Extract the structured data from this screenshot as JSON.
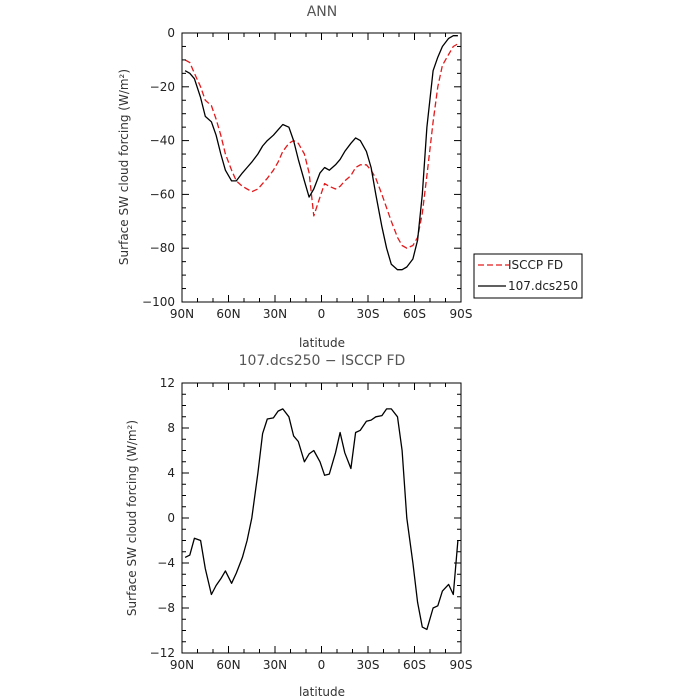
{
  "chart_data": [
    {
      "type": "line",
      "title": "ANN",
      "xlabel": "latitude",
      "ylabel": "Surface SW cloud forcing (W/m²)",
      "xlim": [
        90,
        -90
      ],
      "ylim": [
        -100,
        0
      ],
      "x_ticks": [
        {
          "value": 90,
          "label": "90N"
        },
        {
          "value": 60,
          "label": "60N"
        },
        {
          "value": 30,
          "label": "30N"
        },
        {
          "value": 0,
          "label": "0"
        },
        {
          "value": -30,
          "label": "30S"
        },
        {
          "value": -60,
          "label": "60S"
        },
        {
          "value": -90,
          "label": "90S"
        }
      ],
      "y_ticks": [
        {
          "value": 0,
          "label": "0"
        },
        {
          "value": -20,
          "label": "−20"
        },
        {
          "value": -40,
          "label": "−40"
        },
        {
          "value": -60,
          "label": "−60"
        },
        {
          "value": -80,
          "label": "−80"
        },
        {
          "value": -100,
          "label": "−100"
        }
      ],
      "legend": {
        "position": "right-bottom-outside"
      },
      "series": [
        {
          "name": "ISCCP FD",
          "color": "#e31a1c",
          "style": "dashed",
          "x": [
            88,
            85,
            82,
            78,
            75,
            71,
            68,
            65,
            62,
            58,
            55,
            51,
            48,
            45,
            41,
            38,
            35,
            31,
            28,
            25,
            21,
            18,
            15,
            11,
            8,
            5,
            1,
            -2,
            -5,
            -9,
            -12,
            -15,
            -19,
            -22,
            -25,
            -29,
            -32,
            -35,
            -39,
            -42,
            -45,
            -49,
            -52,
            -55,
            -59,
            -62,
            -65,
            -68,
            -72,
            -75,
            -78,
            -82,
            -85,
            -88
          ],
          "values": [
            -10,
            -11,
            -15,
            -20,
            -25,
            -27,
            -32,
            -38,
            -45,
            -51,
            -55,
            -57,
            -58,
            -59,
            -58,
            -56,
            -54,
            -51,
            -48,
            -44,
            -41,
            -40,
            -41,
            -45,
            -52,
            -68,
            -61,
            -56,
            -57,
            -58,
            -57,
            -55,
            -53,
            -50,
            -49,
            -49,
            -51,
            -54,
            -60,
            -65,
            -70,
            -76,
            -79,
            -80,
            -79,
            -76,
            -67,
            -53,
            -33,
            -20,
            -12,
            -8,
            -5,
            -4
          ]
        },
        {
          "name": "107.dcs250",
          "color": "#000000",
          "style": "solid",
          "x": [
            88,
            85,
            82,
            78,
            75,
            71,
            68,
            65,
            62,
            58,
            55,
            51,
            48,
            45,
            41,
            38,
            35,
            31,
            28,
            25,
            21,
            18,
            15,
            11,
            8,
            5,
            1,
            -2,
            -5,
            -9,
            -12,
            -15,
            -19,
            -22,
            -25,
            -29,
            -32,
            -35,
            -39,
            -42,
            -45,
            -49,
            -52,
            -55,
            -59,
            -62,
            -65,
            -68,
            -72,
            -75,
            -78,
            -82,
            -85,
            -88
          ],
          "values": [
            -14,
            -15,
            -17,
            -24,
            -31,
            -33,
            -38,
            -45,
            -51,
            -55,
            -55,
            -52,
            -50,
            -48,
            -45,
            -42,
            -40,
            -38,
            -36,
            -34,
            -35,
            -40,
            -47,
            -55,
            -61,
            -58,
            -52,
            -50,
            -51,
            -49,
            -47,
            -44,
            -41,
            -39,
            -40,
            -44,
            -50,
            -60,
            -72,
            -80,
            -86,
            -88,
            -88,
            -87,
            -84,
            -77,
            -60,
            -35,
            -14,
            -9,
            -5,
            -2,
            -1,
            -1
          ]
        }
      ]
    },
    {
      "type": "line",
      "title": "107.dcs250 − ISCCP FD",
      "xlabel": "latitude",
      "ylabel": "Surface SW cloud forcing (W/m²)",
      "xlim": [
        90,
        -90
      ],
      "ylim": [
        -12,
        12
      ],
      "x_ticks": [
        {
          "value": 90,
          "label": "90N"
        },
        {
          "value": 60,
          "label": "60N"
        },
        {
          "value": 30,
          "label": "30N"
        },
        {
          "value": 0,
          "label": "0"
        },
        {
          "value": -30,
          "label": "30S"
        },
        {
          "value": -60,
          "label": "60S"
        },
        {
          "value": -90,
          "label": "90S"
        }
      ],
      "y_ticks": [
        {
          "value": 12,
          "label": "12"
        },
        {
          "value": 8,
          "label": "8"
        },
        {
          "value": 4,
          "label": "4"
        },
        {
          "value": 0,
          "label": "0"
        },
        {
          "value": -4,
          "label": "−4"
        },
        {
          "value": -8,
          "label": "−8"
        },
        {
          "value": -12,
          "label": "−12"
        }
      ],
      "series": [
        {
          "color": "#000000",
          "style": "solid",
          "x": [
            88,
            85,
            82,
            78,
            75,
            71,
            68,
            65,
            62,
            58,
            55,
            51,
            48,
            45,
            41,
            38,
            35,
            31,
            28,
            25,
            21,
            18,
            15,
            11,
            8,
            5,
            1,
            -2,
            -5,
            -9,
            -12,
            -15,
            -19,
            -22,
            -25,
            -29,
            -32,
            -35,
            -39,
            -42,
            -45,
            -49,
            -52,
            -55,
            -59,
            -62,
            -65,
            -68,
            -72,
            -75,
            -78,
            -82,
            -85,
            -88
          ],
          "values": [
            -3.5,
            -3.3,
            -1.8,
            -2.0,
            -4.5,
            -6.8,
            -6.0,
            -5.4,
            -4.7,
            -5.8,
            -4.9,
            -3.5,
            -2.0,
            0.0,
            4.0,
            7.5,
            8.8,
            8.9,
            9.5,
            9.7,
            9.0,
            7.3,
            6.8,
            5.0,
            5.7,
            6.0,
            5.0,
            3.8,
            3.9,
            5.8,
            7.6,
            5.8,
            4.4,
            7.6,
            7.8,
            8.6,
            8.7,
            9.0,
            9.1,
            9.7,
            9.7,
            9.0,
            6.0,
            0.0,
            -4.0,
            -7.5,
            -9.7,
            -9.9,
            -8.0,
            -7.8,
            -6.5,
            -5.9,
            -6.8,
            -2.0
          ]
        }
      ]
    }
  ]
}
